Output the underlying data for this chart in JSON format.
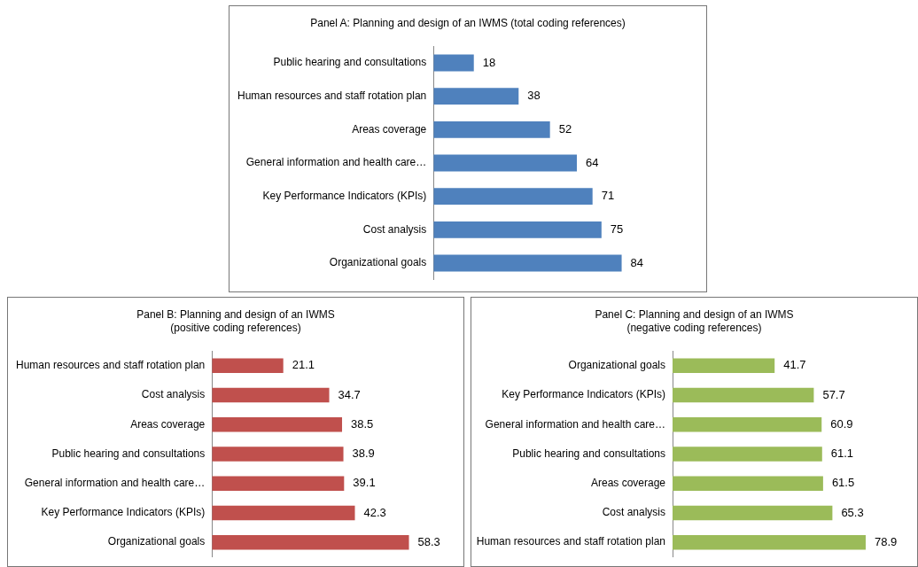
{
  "chart_data": [
    {
      "type": "bar",
      "orientation": "horizontal",
      "title": "Panel A: Planning and design of an IWMS (total coding references)",
      "categories": [
        "Public hearing and consultations",
        "Human resources and staff rotation plan",
        "Areas coverage",
        "General information and health care…",
        "Key Performance Indicators (KPIs)",
        "Cost analysis",
        "Organizational goals"
      ],
      "values": [
        18,
        38,
        52,
        64,
        71,
        75,
        84
      ],
      "color": "#4f81bd",
      "data_labels": true,
      "grid": false,
      "legend": false
    },
    {
      "type": "bar",
      "orientation": "horizontal",
      "title": "Panel B: Planning and design of an IWMS",
      "subtitle": "(positive coding references)",
      "categories": [
        "Human resources and staff rotation plan",
        "Cost analysis",
        "Areas coverage",
        "Public hearing and consultations",
        "General information and health care…",
        "Key Performance Indicators (KPIs)",
        "Organizational goals"
      ],
      "values": [
        21.1,
        34.7,
        38.5,
        38.9,
        39.1,
        42.3,
        58.3
      ],
      "color": "#c0504d",
      "data_labels": true,
      "grid": false,
      "legend": false
    },
    {
      "type": "bar",
      "orientation": "horizontal",
      "title": "Panel C: Planning and design of an IWMS",
      "subtitle": "(negative coding references)",
      "categories": [
        "Organizational goals",
        "Key Performance Indicators (KPIs)",
        "General information and health care…",
        "Public hearing and consultations",
        "Areas coverage",
        "Cost analysis",
        "Human resources and staff rotation plan"
      ],
      "values": [
        41.7,
        57.7,
        60.9,
        61.1,
        61.5,
        65.3,
        78.9
      ],
      "color": "#9bbb59",
      "data_labels": true,
      "grid": false,
      "legend": false
    }
  ]
}
